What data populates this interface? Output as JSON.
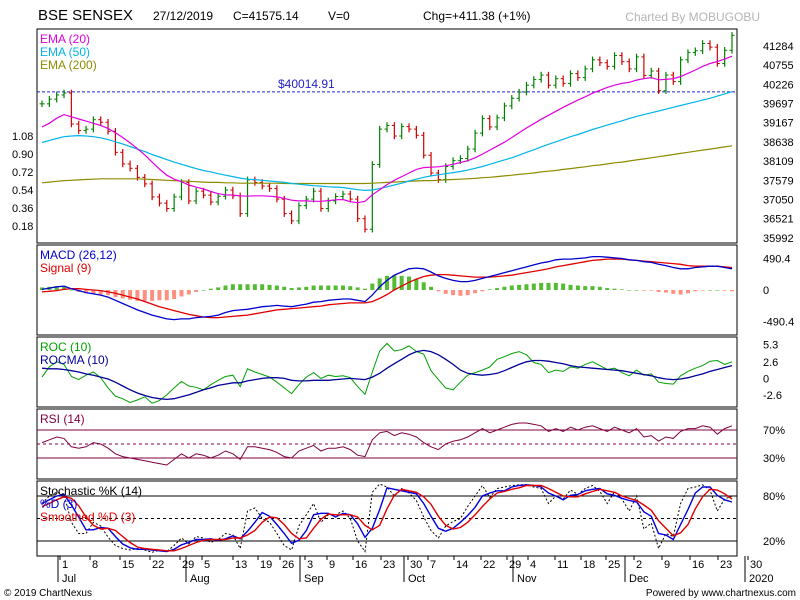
{
  "header": {
    "symbol": "BSE SENSEX",
    "date": "27/12/2019",
    "close": "C=41575.14",
    "volume": "V=0",
    "change": "Chg=+411.38 (+1%)",
    "brand": "Charted By MOBUGOBU"
  },
  "footer": {
    "copyright": "© 2019 ChartNexus",
    "powered": "Powered by www.chartnexus.com"
  },
  "chart_data": {
    "type": "line",
    "x_ticks": [
      "1",
      "8",
      "15",
      "22",
      "29",
      "5",
      "13",
      "19",
      "26",
      "3",
      "9",
      "16",
      "23",
      "30",
      "7",
      "14",
      "22",
      "29",
      "4",
      "11",
      "18",
      "25",
      "2",
      "9",
      "16",
      "23",
      "30"
    ],
    "months": [
      "Jul",
      "Aug",
      "Sep",
      "Oct",
      "Nov",
      "Dec",
      "2020"
    ],
    "price": {
      "legend": [
        "EMA (20)",
        "EMA (50)",
        "EMA (200)"
      ],
      "colors": [
        "#e000e0",
        "#00b4e8",
        "#8c8c00"
      ],
      "y_ticks": [
        "41284",
        "40755",
        "40226",
        "39697",
        "39167",
        "38638",
        "38109",
        "37579",
        "37050",
        "36521",
        "35992"
      ],
      "ylim": [
        35850,
        41750
      ],
      "left_scale": [
        "1.08",
        "0.90",
        "0.72",
        "0.54",
        "0.36",
        "0.18"
      ],
      "marker": "$40014.91",
      "marker_value": 40014.91,
      "close": [
        39687,
        39816,
        39932,
        39987,
        39130,
        38950,
        38990,
        39250,
        39180,
        38930,
        38350,
        38030,
        37910,
        37660,
        37480,
        37120,
        36950,
        36800,
        37120,
        37520,
        37010,
        37280,
        37170,
        36980,
        37140,
        37310,
        37150,
        36660,
        37590,
        37520,
        37420,
        37350,
        37060,
        36660,
        36460,
        36880,
        37060,
        37280,
        36800,
        37010,
        37130,
        37200,
        37060,
        36520,
        36230,
        38014,
        38990,
        39090,
        38800,
        39060,
        38990,
        38820,
        38270,
        37780,
        37600,
        37960,
        38120,
        38180,
        38440,
        38880,
        39280,
        39050,
        39300,
        39630,
        39840,
        40010,
        40200,
        40360,
        40480,
        40200,
        40380,
        40250,
        40520,
        40410,
        40650,
        40900,
        40820,
        40720,
        41020,
        40850,
        40650,
        40980,
        40470,
        40590,
        40050,
        40480,
        40300,
        40900,
        41100,
        41150,
        41350,
        41250,
        40800,
        41164,
        41575
      ],
      "ema20": [
        39050,
        39150,
        39290,
        39390,
        39330,
        39270,
        39210,
        39150,
        39090,
        39010,
        38890,
        38760,
        38610,
        38450,
        38280,
        38080,
        37890,
        37720,
        37610,
        37540,
        37450,
        37390,
        37340,
        37270,
        37210,
        37180,
        37170,
        37150,
        37140,
        37150,
        37150,
        37140,
        37120,
        37080,
        37030,
        37010,
        37010,
        37000,
        37000,
        37020,
        37040,
        37050,
        36990,
        36960,
        37000,
        37180,
        37320,
        37460,
        37580,
        37680,
        37780,
        37880,
        37930,
        37940,
        37950,
        37980,
        38020,
        38070,
        38120,
        38200,
        38300,
        38410,
        38520,
        38630,
        38760,
        38890,
        39020,
        39140,
        39260,
        39370,
        39480,
        39590,
        39690,
        39790,
        39880,
        39980,
        40060,
        40140,
        40200,
        40250,
        40280,
        40340,
        40380,
        40410,
        40350,
        40360,
        40380,
        40440,
        40530,
        40620,
        40720,
        40800,
        40850,
        40920,
        41000
      ],
      "ema50": [
        38620,
        38680,
        38730,
        38780,
        38800,
        38810,
        38800,
        38780,
        38750,
        38700,
        38640,
        38580,
        38510,
        38440,
        38370,
        38290,
        38220,
        38150,
        38080,
        38020,
        37960,
        37900,
        37850,
        37810,
        37760,
        37720,
        37680,
        37640,
        37610,
        37600,
        37580,
        37560,
        37540,
        37520,
        37490,
        37470,
        37450,
        37430,
        37420,
        37400,
        37390,
        37380,
        37350,
        37320,
        37300,
        37310,
        37350,
        37400,
        37450,
        37500,
        37560,
        37610,
        37660,
        37700,
        37730,
        37760,
        37790,
        37820,
        37860,
        37910,
        37960,
        38020,
        38080,
        38140,
        38200,
        38270,
        38350,
        38420,
        38500,
        38570,
        38640,
        38710,
        38780,
        38840,
        38910,
        38980,
        39040,
        39100,
        39160,
        39220,
        39280,
        39340,
        39390,
        39440,
        39490,
        39540,
        39590,
        39640,
        39690,
        39740,
        39790,
        39840,
        39900,
        39960,
        40020
      ],
      "ema200": [
        37510,
        37530,
        37550,
        37570,
        37580,
        37590,
        37600,
        37610,
        37620,
        37620,
        37620,
        37620,
        37620,
        37620,
        37610,
        37600,
        37590,
        37580,
        37570,
        37560,
        37550,
        37540,
        37530,
        37520,
        37520,
        37510,
        37510,
        37500,
        37500,
        37500,
        37500,
        37500,
        37500,
        37490,
        37490,
        37490,
        37490,
        37490,
        37490,
        37490,
        37490,
        37490,
        37490,
        37490,
        37490,
        37500,
        37510,
        37520,
        37530,
        37540,
        37550,
        37560,
        37570,
        37570,
        37580,
        37590,
        37600,
        37610,
        37620,
        37630,
        37650,
        37660,
        37680,
        37700,
        37720,
        37740,
        37760,
        37780,
        37810,
        37830,
        37850,
        37880,
        37900,
        37930,
        37950,
        37980,
        38000,
        38030,
        38060,
        38080,
        38110,
        38140,
        38170,
        38200,
        38230,
        38260,
        38290,
        38320,
        38350,
        38380,
        38410,
        38440,
        38470,
        38500,
        38530
      ]
    },
    "macd": {
      "legend": [
        "MACD (26,12)",
        "Signal (9)"
      ],
      "colors": [
        "#0000cc",
        "#e00000"
      ],
      "y_ticks": [
        "490.4",
        "0",
        "-490.4"
      ],
      "ylim": [
        -700,
        700
      ],
      "macd": [
        10,
        30,
        50,
        60,
        20,
        -10,
        -40,
        -60,
        -80,
        -110,
        -160,
        -210,
        -260,
        -310,
        -350,
        -390,
        -420,
        -450,
        -460,
        -450,
        -450,
        -430,
        -420,
        -410,
        -390,
        -350,
        -320,
        -310,
        -300,
        -280,
        -260,
        -250,
        -240,
        -250,
        -260,
        -240,
        -220,
        -190,
        -180,
        -160,
        -150,
        -140,
        -140,
        -160,
        -180,
        -80,
        50,
        150,
        230,
        280,
        330,
        340,
        330,
        280,
        220,
        180,
        150,
        130,
        130,
        150,
        180,
        210,
        240,
        270,
        300,
        330,
        360,
        390,
        420,
        440,
        470,
        480,
        480,
        490,
        500,
        520,
        520,
        510,
        500,
        490,
        470,
        460,
        440,
        430,
        400,
        380,
        350,
        330,
        330,
        350,
        360,
        370,
        370,
        350,
        330
      ],
      "signal": [
        -30,
        -20,
        -10,
        10,
        20,
        20,
        10,
        0,
        -10,
        -30,
        -50,
        -80,
        -110,
        -140,
        -180,
        -220,
        -260,
        -290,
        -320,
        -350,
        -380,
        -400,
        -420,
        -430,
        -430,
        -420,
        -410,
        -400,
        -390,
        -370,
        -350,
        -330,
        -310,
        -300,
        -290,
        -280,
        -270,
        -260,
        -250,
        -230,
        -220,
        -210,
        -200,
        -200,
        -200,
        -180,
        -130,
        -70,
        0,
        60,
        120,
        170,
        210,
        230,
        240,
        240,
        230,
        220,
        210,
        200,
        200,
        200,
        210,
        220,
        230,
        250,
        270,
        290,
        310,
        330,
        360,
        380,
        400,
        420,
        440,
        460,
        470,
        480,
        480,
        480,
        470,
        460,
        450,
        440,
        430,
        420,
        410,
        400,
        380,
        370,
        370,
        370,
        370,
        360,
        350
      ]
    },
    "roc": {
      "legend": [
        "ROC (10)",
        "ROCMA (10)"
      ],
      "colors": [
        "#00a000",
        "#000099"
      ],
      "y_ticks": [
        "5.3",
        "2.6",
        "0",
        "-2.6"
      ],
      "ylim": [
        -4.5,
        6.5
      ],
      "roc": [
        0.2,
        1.8,
        2.6,
        2.2,
        0.3,
        -0.2,
        0.5,
        1.0,
        0.1,
        -1.5,
        -2.8,
        -3.2,
        -3.8,
        -3.4,
        -2.9,
        -3.9,
        -3.5,
        -2.6,
        -1.5,
        -0.5,
        -1.2,
        -1.4,
        -1.8,
        -1.0,
        -0.3,
        0.3,
        0.5,
        -1.3,
        1.5,
        1.0,
        0.6,
        0.2,
        -0.6,
        -1.5,
        -2.4,
        -1.0,
        0.2,
        0.9,
        0.0,
        0.5,
        0.3,
        0.4,
        0.1,
        -1.3,
        -2.5,
        1.0,
        4.3,
        5.5,
        4.3,
        4.5,
        5.1,
        4.2,
        3.8,
        1.2,
        -0.2,
        -1.5,
        -1.8,
        -0.6,
        0.5,
        0.9,
        1.3,
        1.8,
        3.0,
        3.4,
        3.9,
        4.2,
        3.7,
        2.5,
        2.2,
        0.9,
        1.3,
        1.1,
        1.8,
        1.6,
        2.2,
        2.6,
        2.0,
        1.4,
        1.6,
        0.9,
        0.4,
        1.3,
        0.5,
        0.7,
        -0.6,
        -0.8,
        -0.9,
        0.4,
        1.1,
        1.6,
        2.0,
        2.7,
        2.8,
        2.2,
        2.6
      ],
      "rocma": [
        1.6,
        1.5,
        1.5,
        1.4,
        1.2,
        1.0,
        0.7,
        0.5,
        0.2,
        -0.1,
        -0.6,
        -1.2,
        -1.8,
        -2.3,
        -2.7,
        -3.0,
        -3.2,
        -3.3,
        -3.2,
        -2.9,
        -2.6,
        -2.2,
        -1.8,
        -1.5,
        -1.1,
        -0.9,
        -0.7,
        -0.7,
        -0.4,
        -0.2,
        0.0,
        0.1,
        0.1,
        0.0,
        -0.3,
        -0.4,
        -0.4,
        -0.3,
        -0.3,
        -0.3,
        -0.2,
        -0.1,
        0.0,
        -0.1,
        -0.2,
        0.2,
        0.8,
        1.6,
        2.3,
        3.0,
        3.7,
        4.2,
        4.4,
        4.2,
        3.7,
        3.0,
        2.2,
        1.3,
        0.8,
        0.6,
        0.5,
        0.6,
        0.8,
        1.2,
        1.7,
        2.2,
        2.6,
        2.8,
        2.8,
        2.7,
        2.5,
        2.3,
        2.0,
        1.8,
        1.7,
        1.6,
        1.5,
        1.4,
        1.3,
        1.2,
        1.0,
        0.8,
        0.6,
        0.4,
        0.1,
        -0.1,
        -0.2,
        -0.1,
        0.1,
        0.4,
        0.7,
        1.1,
        1.4,
        1.7,
        2.0
      ]
    },
    "rsi": {
      "legend": [
        "RSI (14)"
      ],
      "color": "#800040",
      "y_ticks": [
        "70%",
        "30%"
      ],
      "ylim": [
        0,
        100
      ],
      "levels": [
        70,
        50,
        30
      ],
      "rsi": [
        52,
        56,
        60,
        58,
        46,
        44,
        46,
        52,
        50,
        44,
        36,
        32,
        30,
        28,
        26,
        24,
        22,
        20,
        28,
        36,
        30,
        36,
        34,
        30,
        34,
        40,
        36,
        28,
        46,
        46,
        44,
        42,
        38,
        32,
        30,
        40,
        44,
        48,
        40,
        44,
        44,
        46,
        42,
        34,
        32,
        56,
        66,
        68,
        62,
        66,
        64,
        60,
        52,
        46,
        42,
        50,
        54,
        56,
        60,
        66,
        72,
        66,
        70,
        74,
        78,
        80,
        80,
        78,
        76,
        68,
        72,
        68,
        74,
        70,
        74,
        76,
        72,
        68,
        74,
        70,
        66,
        72,
        60,
        62,
        54,
        60,
        58,
        68,
        72,
        72,
        76,
        74,
        64,
        72,
        76
      ]
    },
    "stochastic": {
      "legend": [
        "Stochastic %K (14)",
        "%D (3)",
        "Smoothed %D (3)"
      ],
      "colors": [
        "#000000",
        "#0000dd",
        "#e00000"
      ],
      "y_ticks": [
        "80%",
        "20%"
      ],
      "ylim": [
        0,
        100
      ],
      "levels": [
        80,
        50,
        20
      ],
      "k": [
        70,
        80,
        85,
        82,
        45,
        30,
        30,
        45,
        40,
        25,
        14,
        10,
        8,
        10,
        8,
        5,
        8,
        6,
        14,
        24,
        16,
        26,
        24,
        18,
        22,
        30,
        28,
        10,
        60,
        64,
        50,
        45,
        30,
        14,
        8,
        40,
        55,
        70,
        45,
        55,
        55,
        60,
        50,
        20,
        6,
        85,
        96,
        92,
        80,
        90,
        84,
        74,
        52,
        34,
        24,
        40,
        46,
        50,
        66,
        80,
        94,
        78,
        90,
        92,
        94,
        95,
        95,
        92,
        90,
        70,
        80,
        76,
        88,
        82,
        90,
        94,
        86,
        70,
        86,
        76,
        60,
        80,
        36,
        44,
        10,
        30,
        26,
        70,
        90,
        92,
        95,
        88,
        60,
        76,
        80
      ],
      "d": [
        70,
        75,
        80,
        82,
        68,
        52,
        35,
        35,
        38,
        37,
        26,
        16,
        11,
        9,
        9,
        8,
        7,
        6,
        9,
        15,
        18,
        22,
        22,
        23,
        21,
        23,
        27,
        23,
        33,
        45,
        58,
        53,
        42,
        30,
        17,
        21,
        34,
        55,
        57,
        57,
        52,
        57,
        55,
        43,
        25,
        37,
        62,
        91,
        89,
        87,
        85,
        83,
        70,
        53,
        37,
        33,
        37,
        45,
        54,
        65,
        80,
        84,
        87,
        87,
        92,
        94,
        95,
        94,
        92,
        84,
        80,
        75,
        81,
        82,
        87,
        89,
        90,
        83,
        81,
        77,
        74,
        72,
        59,
        53,
        30,
        28,
        22,
        42,
        62,
        84,
        92,
        92,
        81,
        75,
        72
      ],
      "sd": [
        66,
        70,
        75,
        79,
        77,
        67,
        52,
        41,
        36,
        37,
        34,
        26,
        18,
        12,
        10,
        9,
        8,
        7,
        7,
        10,
        14,
        18,
        21,
        22,
        22,
        22,
        24,
        24,
        28,
        34,
        45,
        52,
        51,
        42,
        30,
        23,
        24,
        37,
        49,
        56,
        55,
        55,
        55,
        52,
        41,
        35,
        41,
        63,
        81,
        89,
        87,
        85,
        79,
        69,
        53,
        41,
        36,
        38,
        45,
        55,
        66,
        76,
        84,
        86,
        89,
        91,
        94,
        94,
        94,
        90,
        85,
        80,
        79,
        79,
        83,
        86,
        89,
        87,
        85,
        80,
        77,
        74,
        68,
        61,
        47,
        37,
        27,
        31,
        42,
        63,
        79,
        89,
        88,
        83,
        76
      ]
    }
  }
}
